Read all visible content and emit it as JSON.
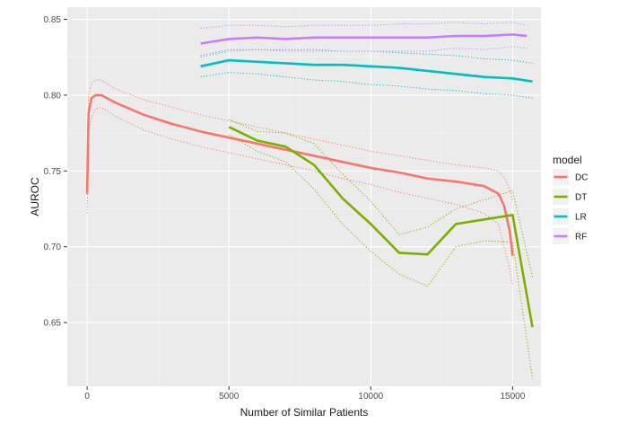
{
  "chart_data": {
    "type": "line",
    "title": "",
    "xlabel": "Number of Similar Patients",
    "ylabel": "AUROC",
    "xlim": [
      -700,
      16000
    ],
    "ylim": [
      0.608,
      0.858
    ],
    "x_ticks": [
      0,
      5000,
      10000,
      15000
    ],
    "x_tick_labels": [
      "0",
      "5000",
      "10000",
      "15000"
    ],
    "y_ticks": [
      0.65,
      0.7,
      0.75,
      0.8,
      0.85
    ],
    "y_tick_labels": [
      "0.65",
      "0.70",
      "0.75",
      "0.80",
      "0.85"
    ],
    "grid": true,
    "legend_title": "model",
    "legend_position": "right",
    "series": [
      {
        "name": "DC",
        "color": "#F8766D",
        "x": [
          0,
          50,
          150,
          300,
          500,
          1000,
          2000,
          3000,
          4000,
          5000,
          6000,
          7000,
          8000,
          9000,
          10000,
          11000,
          12000,
          13000,
          14000,
          14500,
          14700,
          14900,
          15000
        ],
        "y": [
          0.735,
          0.788,
          0.798,
          0.8,
          0.8,
          0.795,
          0.787,
          0.781,
          0.776,
          0.772,
          0.768,
          0.764,
          0.76,
          0.756,
          0.752,
          0.749,
          0.745,
          0.743,
          0.74,
          0.735,
          0.727,
          0.71,
          0.694
        ],
        "lower": [
          0.722,
          0.775,
          0.785,
          0.791,
          0.792,
          0.786,
          0.777,
          0.771,
          0.766,
          0.762,
          0.758,
          0.754,
          0.75,
          0.745,
          0.741,
          0.736,
          0.732,
          0.728,
          0.722,
          0.715,
          0.7,
          0.685,
          0.675
        ],
        "upper": [
          0.748,
          0.8,
          0.808,
          0.81,
          0.81,
          0.804,
          0.797,
          0.792,
          0.787,
          0.783,
          0.779,
          0.775,
          0.771,
          0.767,
          0.763,
          0.76,
          0.757,
          0.754,
          0.752,
          0.75,
          0.746,
          0.738,
          0.73
        ]
      },
      {
        "name": "DT",
        "color": "#7CAE00",
        "x": [
          5000,
          6000,
          7000,
          8000,
          9000,
          10000,
          11000,
          12000,
          13000,
          14000,
          15000,
          15700
        ],
        "y": [
          0.779,
          0.77,
          0.766,
          0.754,
          0.732,
          0.715,
          0.696,
          0.695,
          0.715,
          0.718,
          0.721,
          0.647
        ],
        "lower": [
          0.774,
          0.763,
          0.756,
          0.738,
          0.715,
          0.697,
          0.682,
          0.674,
          0.7,
          0.704,
          0.703,
          0.613
        ],
        "upper": [
          0.784,
          0.776,
          0.775,
          0.768,
          0.748,
          0.73,
          0.708,
          0.713,
          0.725,
          0.731,
          0.737,
          0.68
        ]
      },
      {
        "name": "LR",
        "color": "#00BFC4",
        "x": [
          4000,
          5000,
          6000,
          7000,
          8000,
          9000,
          10000,
          11000,
          12000,
          13000,
          14000,
          15000,
          15700
        ],
        "y": [
          0.819,
          0.823,
          0.822,
          0.821,
          0.82,
          0.82,
          0.819,
          0.818,
          0.816,
          0.814,
          0.812,
          0.811,
          0.809
        ],
        "lower": [
          0.812,
          0.815,
          0.814,
          0.812,
          0.81,
          0.809,
          0.807,
          0.806,
          0.804,
          0.803,
          0.801,
          0.8,
          0.798
        ],
        "upper": [
          0.826,
          0.83,
          0.83,
          0.83,
          0.83,
          0.829,
          0.829,
          0.828,
          0.827,
          0.826,
          0.824,
          0.823,
          0.821
        ]
      },
      {
        "name": "RF",
        "color": "#C77CFF",
        "x": [
          4000,
          5000,
          6000,
          7000,
          8000,
          9000,
          10000,
          11000,
          12000,
          13000,
          14000,
          15000,
          15500
        ],
        "y": [
          0.834,
          0.837,
          0.838,
          0.837,
          0.838,
          0.838,
          0.838,
          0.838,
          0.838,
          0.839,
          0.839,
          0.84,
          0.839
        ],
        "lower": [
          0.825,
          0.829,
          0.83,
          0.829,
          0.829,
          0.829,
          0.829,
          0.829,
          0.829,
          0.831,
          0.83,
          0.832,
          0.831
        ],
        "upper": [
          0.844,
          0.846,
          0.846,
          0.845,
          0.846,
          0.846,
          0.846,
          0.847,
          0.847,
          0.848,
          0.847,
          0.848,
          0.846
        ]
      }
    ]
  }
}
